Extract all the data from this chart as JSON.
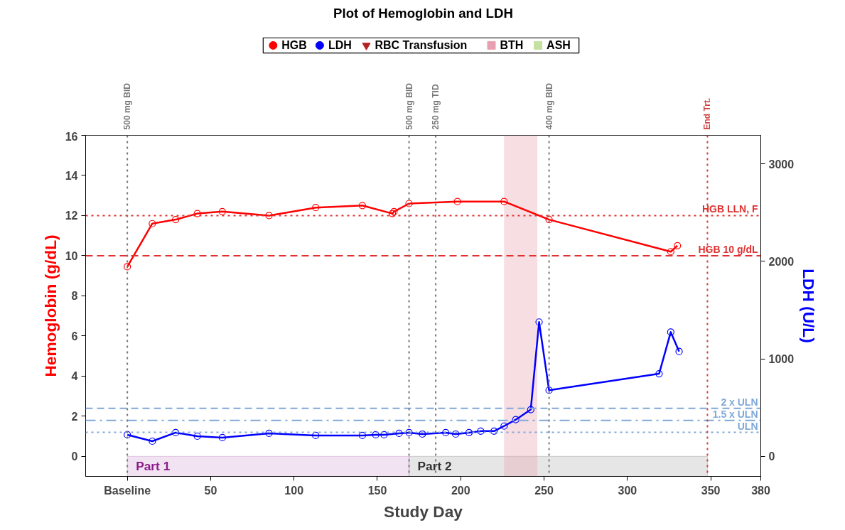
{
  "chart_data": {
    "type": "line",
    "title": "Plot of Hemoglobin and LDH",
    "xlabel": "Study Day",
    "ylabel": "Hemoglobin (g/dL)",
    "y2label": "LDH (U/L)",
    "xlim": [
      -25,
      380
    ],
    "xticks": [
      {
        "value": 0,
        "label": "Baseline"
      },
      50,
      100,
      150,
      200,
      250,
      300,
      350,
      380
    ],
    "ylim": [
      -1,
      16
    ],
    "yticks": [
      0,
      2,
      4,
      6,
      8,
      10,
      12,
      14,
      16
    ],
    "y2lim": [
      -206,
      3294
    ],
    "y2ticks": [
      0,
      1000,
      2000,
      3000
    ],
    "legend": "top",
    "grid": false,
    "series": [
      {
        "name": "HGB",
        "color": "#ff0000",
        "marker": "circle",
        "x": [
          0,
          15,
          29,
          42,
          57,
          85,
          113,
          141,
          159,
          160,
          169,
          198,
          226,
          253,
          326,
          330
        ],
        "values": [
          9.45,
          11.6,
          11.8,
          12.1,
          12.2,
          12.0,
          12.4,
          12.5,
          12.1,
          12.2,
          12.6,
          12.7,
          12.7,
          11.8,
          10.2,
          10.5
        ]
      },
      {
        "name": "LDH",
        "color": "#0000ff",
        "marker": "circle",
        "axis": "y2",
        "x": [
          0,
          15,
          29,
          42,
          57,
          85,
          113,
          141,
          149,
          154,
          163,
          169,
          177,
          191,
          197,
          205,
          212,
          220,
          226,
          233,
          242,
          247,
          253,
          319,
          326,
          331
        ],
        "values": [
          221,
          155,
          243,
          206,
          192,
          236,
          214,
          214,
          221,
          221,
          236,
          243,
          228,
          243,
          228,
          243,
          258,
          258,
          310,
          376,
          479,
          1378,
          678,
          847,
          1275,
          1076
        ]
      },
      {
        "name": "RBC Transfusion",
        "type": "scatter",
        "color": "#b22222",
        "marker": "triangle"
      },
      {
        "name": "BTH",
        "type": "area",
        "color": "#e8a0b0"
      },
      {
        "name": "ASH",
        "type": "area",
        "color": "#c5e0a0"
      }
    ],
    "ref_lines": [
      {
        "axis": "y",
        "value": 12,
        "label": "HGB LLN, F",
        "color": "#e03030",
        "line_style": "dotted"
      },
      {
        "axis": "y",
        "value": 10,
        "label": "HGB 10 g/dL",
        "color": "#e03030",
        "line_style": "dashed"
      },
      {
        "axis": "y2",
        "value": 492,
        "label": "2 x ULN",
        "color": "#7fa8d8",
        "line_style": "dashed"
      },
      {
        "axis": "y2",
        "value": 369,
        "label": "1.5 x ULN",
        "color": "#7fa8d8",
        "line_style": "dashdot"
      },
      {
        "axis": "y2",
        "value": 246,
        "label": "ULN",
        "color": "#7fa8d8",
        "line_style": "dotted"
      },
      {
        "axis": "x",
        "value": 0,
        "label": "500 mg BID",
        "color": "#777777",
        "line_style": "dotted"
      },
      {
        "axis": "x",
        "value": 169,
        "label": "500 mg BID",
        "color": "#777777",
        "line_style": "dotted"
      },
      {
        "axis": "x",
        "value": 185,
        "label": "250 mg TID",
        "color": "#777777",
        "line_style": "dotted"
      },
      {
        "axis": "x",
        "value": 253,
        "label": "400 mg BID",
        "color": "#777777",
        "line_style": "dotted"
      },
      {
        "axis": "x",
        "value": 348,
        "label": "End Trt.",
        "color": "#d04040",
        "line_style": "dotted"
      }
    ],
    "bands": [
      {
        "axis": "x",
        "from": 226,
        "to": 246,
        "color": "#e8a0b0"
      },
      {
        "axis": "x",
        "from": 0,
        "to": 169,
        "label": "Part 1",
        "color": "#8b1a8b"
      },
      {
        "axis": "x",
        "from": 169,
        "to": 348,
        "label": "Part 2",
        "color": "#333333"
      }
    ]
  }
}
